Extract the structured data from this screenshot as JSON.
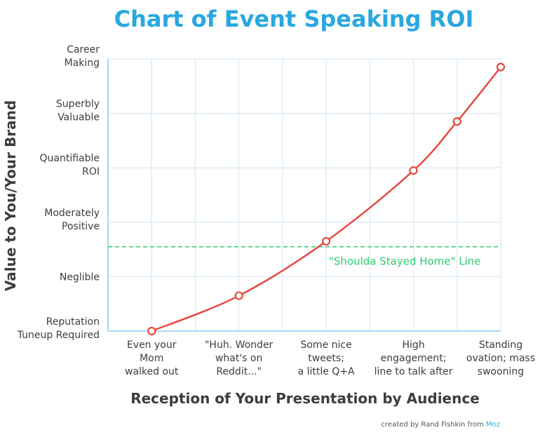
{
  "chart_data": {
    "type": "line",
    "title": "Chart of Event Speaking ROI",
    "xlabel": "Reception of Your Presentation by Audience",
    "ylabel": "Value to You/Your Brand",
    "x_categories": [
      [
        "Even your",
        "Mom",
        "walked out"
      ],
      [
        "\"Huh. Wonder",
        "what's on",
        "Reddit...\""
      ],
      [
        "Some nice",
        "tweets;",
        "a little Q+A"
      ],
      [
        "High",
        "engagement;",
        "line to talk after"
      ],
      [
        "Standing",
        "ovation; mass",
        "swooning"
      ]
    ],
    "y_categories": [
      [
        "Reputation",
        "Tuneup Required"
      ],
      [
        "Neglible"
      ],
      [
        "Moderately",
        "Positive"
      ],
      [
        "Quantifiable",
        "ROI"
      ],
      [
        "Superbly",
        "Valuable"
      ],
      [
        "Career",
        "Making"
      ]
    ],
    "xlim": [
      0,
      4.5
    ],
    "ylim": [
      0,
      5
    ],
    "series": [
      {
        "x": [
          0.5,
          1.5,
          2.5,
          3.5,
          4.0,
          4.5
        ],
        "y": [
          0.0,
          0.65,
          1.65,
          2.95,
          3.85,
          4.85
        ]
      }
    ],
    "reference_line": {
      "y": 1.55,
      "label": "\"Shoulda Stayed Home\" Line"
    },
    "grid": true,
    "colors": {
      "title": "#29a8e0",
      "line": "#e8473f",
      "reference": "#2ecc71",
      "grid": "#cfe6f5",
      "axis": "#8fc8ec"
    }
  },
  "credit": {
    "text": "created by Rand Fishkin from ",
    "brand": "Moz"
  }
}
